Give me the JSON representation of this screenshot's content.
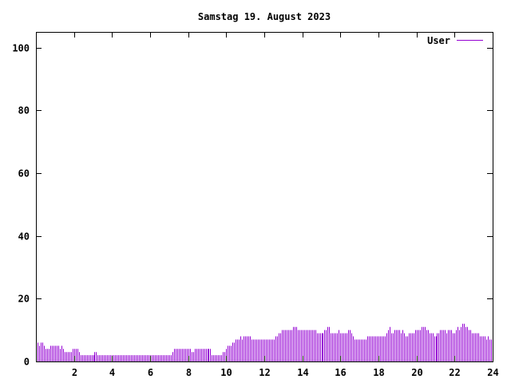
{
  "chart_data": {
    "type": "bar",
    "title": "Samstag 19. August 2023",
    "xlabel": "",
    "ylabel": "",
    "xlim": [
      0,
      24
    ],
    "ylim": [
      0,
      105
    ],
    "x_ticks": [
      2,
      4,
      6,
      8,
      10,
      12,
      14,
      16,
      18,
      20,
      22,
      24
    ],
    "y_ticks": [
      0,
      20,
      40,
      60,
      80,
      100
    ],
    "legend_position": "top-right",
    "grid": false,
    "series": [
      {
        "name": "User",
        "color": "#9400d3",
        "step_minutes": 5,
        "values": [
          6,
          6,
          5,
          6,
          6,
          5,
          4,
          4,
          4,
          5,
          5,
          5,
          5,
          5,
          5,
          4,
          5,
          4,
          3,
          3,
          3,
          3,
          3,
          4,
          4,
          4,
          4,
          3,
          2,
          2,
          2,
          2,
          2,
          2,
          2,
          2,
          2,
          3,
          3,
          2,
          2,
          2,
          2,
          2,
          2,
          2,
          2,
          2,
          2,
          2,
          2,
          2,
          2,
          2,
          2,
          2,
          2,
          2,
          2,
          2,
          2,
          2,
          2,
          2,
          2,
          2,
          2,
          2,
          2,
          2,
          2,
          2,
          2,
          2,
          2,
          2,
          2,
          2,
          2,
          2,
          2,
          2,
          2,
          2,
          2,
          2,
          3,
          4,
          4,
          4,
          4,
          4,
          4,
          4,
          4,
          4,
          4,
          4,
          3,
          3,
          4,
          4,
          4,
          4,
          4,
          4,
          4,
          4,
          4,
          4,
          4,
          2,
          2,
          2,
          2,
          2,
          2,
          2,
          3,
          3,
          4,
          5,
          5,
          5,
          6,
          6,
          7,
          7,
          7,
          8,
          7,
          8,
          8,
          8,
          8,
          8,
          7,
          7,
          7,
          7,
          7,
          7,
          7,
          7,
          7,
          7,
          7,
          7,
          7,
          7,
          7,
          8,
          8,
          9,
          9,
          10,
          10,
          10,
          10,
          10,
          10,
          10,
          11,
          11,
          11,
          10,
          10,
          10,
          10,
          10,
          10,
          10,
          10,
          10,
          10,
          10,
          10,
          9,
          9,
          9,
          9,
          9,
          10,
          10,
          11,
          11,
          9,
          9,
          9,
          9,
          9,
          10,
          9,
          9,
          9,
          9,
          9,
          10,
          10,
          9,
          8,
          7,
          7,
          7,
          7,
          7,
          7,
          7,
          7,
          8,
          8,
          8,
          8,
          8,
          8,
          8,
          8,
          8,
          8,
          8,
          8,
          9,
          10,
          11,
          9,
          9,
          10,
          10,
          10,
          10,
          9,
          10,
          9,
          8,
          8,
          9,
          9,
          9,
          9,
          10,
          10,
          10,
          10,
          11,
          11,
          11,
          10,
          10,
          9,
          9,
          9,
          8,
          8,
          9,
          9,
          10,
          10,
          10,
          10,
          9,
          10,
          10,
          10,
          9,
          9,
          10,
          11,
          10,
          11,
          12,
          12,
          11,
          11,
          10,
          10,
          9,
          9,
          9,
          9,
          9,
          8,
          8,
          8,
          8,
          7,
          8,
          7,
          7
        ]
      }
    ]
  }
}
